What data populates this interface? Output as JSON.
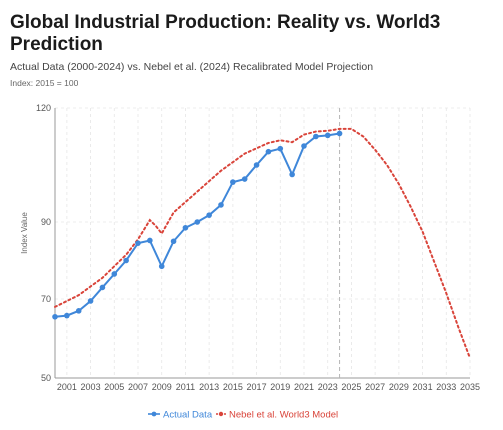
{
  "title": "Global Industrial Production: Reality vs. World3 Prediction",
  "subtitle": "Actual Data (2000-2024) vs. Nebel et al. (2024) Recalibrated Model Projection",
  "note": "Index: 2015 = 100",
  "colors": {
    "actual": "#3f87d9",
    "model": "#d9443a",
    "grid": "#e6e6e6",
    "axis": "#999999"
  },
  "chart_data": {
    "type": "line",
    "title": "Global Industrial Production: Reality vs. World3 Prediction",
    "subtitle": "Actual Data (2000-2024) vs. Nebel et al. (2024) Recalibrated Model Projection",
    "xlabel": "",
    "ylabel": "Index Value",
    "xlim": [
      2000,
      2035
    ],
    "ylim": [
      50,
      120
    ],
    "x_ticks": [
      "2001",
      "2003",
      "2005",
      "2007",
      "2009",
      "2011",
      "2013",
      "2015",
      "2017",
      "2019",
      "2021",
      "2023",
      "2025",
      "2027",
      "2029",
      "2031",
      "2033",
      "2035"
    ],
    "y_ticks": [
      "50",
      "70",
      "90",
      "120"
    ],
    "legend_position": "bottom",
    "grid": true,
    "reference_line_x": 2024,
    "series": [
      {
        "name": "Actual Data",
        "style": "solid-markers",
        "x": [
          2000,
          2001,
          2002,
          2003,
          2004,
          2005,
          2006,
          2007,
          2008,
          2009,
          2010,
          2011,
          2012,
          2013,
          2014,
          2015,
          2016,
          2017,
          2018,
          2019,
          2020,
          2021,
          2022,
          2023,
          2024
        ],
        "y": [
          65.5,
          65.8,
          67,
          69.5,
          73,
          76.5,
          80,
          84.5,
          85.2,
          78.5,
          85,
          88.5,
          90,
          91.8,
          94.5,
          100.5,
          101.3,
          105,
          108.5,
          109.3,
          102.5,
          110,
          112.5,
          112.8,
          113.3
        ]
      },
      {
        "name": "Nebel et al. World3 Model",
        "style": "dotted",
        "x": [
          2000,
          2002,
          2004,
          2006,
          2007,
          2008,
          2008.5,
          2009,
          2010,
          2012,
          2014,
          2016,
          2018,
          2019,
          2020,
          2021,
          2022,
          2023,
          2024,
          2025,
          2026,
          2027,
          2028,
          2029,
          2030,
          2031,
          2032,
          2033,
          2034,
          2035
        ],
        "y": [
          68,
          71,
          75.5,
          81.5,
          85.5,
          90.5,
          89,
          87,
          92.5,
          98,
          103.5,
          108,
          110.8,
          111.5,
          111,
          113,
          113.8,
          114,
          114.5,
          114.5,
          112.5,
          109,
          105,
          100,
          94,
          87.5,
          79.5,
          71.5,
          63,
          55
        ]
      }
    ]
  }
}
